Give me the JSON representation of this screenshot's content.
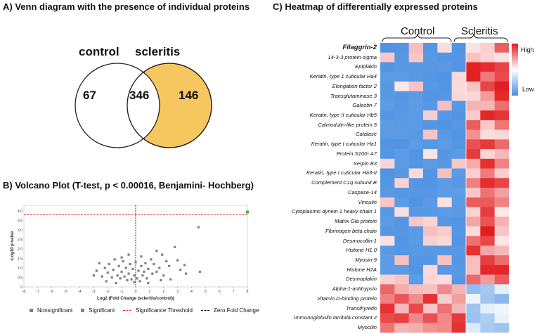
{
  "panel_a": {
    "title": "A) Venn diagram with the presence of individual proteins",
    "label_left": "control",
    "label_right": "scleritis",
    "count_left": "67",
    "count_overlap": "346",
    "count_right": "146",
    "fill_right": "#f7c75f"
  },
  "panel_b": {
    "title": "B) Volcano Plot (T-test, p < 0.00016, Benjamini- Hochberg)",
    "legend": {
      "nonsig": "Nonsignificant",
      "sig": "Significant",
      "threshold": "Significance Threshold",
      "zero": "Zero Fold Change"
    },
    "colors": {
      "nonsig": "#808080",
      "sig": "#3cb44b",
      "threshold": "#e53935",
      "zero": "#000000"
    }
  },
  "panel_c": {
    "title": "C) Heatmap of differentially expressed proteins",
    "group_control": "Control",
    "group_scleritis": "Scleritis",
    "scale_high": "High",
    "scale_low": "Low",
    "proteins": [
      "Filaggrin-2",
      "14-3-3 protein sigma",
      "Epiplakin",
      "Keratin, type 1 cuticular Ha4",
      "Elongation factor 2",
      "Transglutaminase 3",
      "Galectin-7",
      "Keratin, type II cuticular Hb5",
      "Calmodulin-like protein 5",
      "Catalase",
      "Keratin, type I cuticular Ha1",
      "Protein S100- A7",
      "Serpin B3",
      "Keratin, type I cuticular Ha3-II",
      "Complement C1q subunit B",
      "Caspase-14",
      "Vinculin",
      "Cytoplasmic dynein 1 heavy chain 1",
      "Matrix Gla protein",
      "Fibrinogen beta chain",
      "Desmocollin-1",
      "Histone H1.0",
      "Myosin-9",
      "Histone H2A",
      "Desmoplakin",
      "Alpha-1-antitrypsin",
      "Vitamin D-binding protein",
      "Transthyretin",
      "Immunoglobulin lambda constant 2",
      "Myocilin"
    ]
  },
  "chart_data": {
    "type": "scatter",
    "title": "Volcano Plot (T-test, p < 0.00016, Benjamini- Hochberg)",
    "xlabel": "Log2 (Fold Change (scleritis/control))",
    "ylabel": "-Log10 p-value",
    "xlim": [
      -8,
      8
    ],
    "ylim": [
      0,
      4.3
    ],
    "x_ticks": [
      "-8",
      "-7",
      "-6",
      "-5",
      "-4",
      "-3",
      "-2",
      "-1",
      "0",
      "1",
      "2",
      "3",
      "4",
      "5",
      "6",
      "7",
      "8"
    ],
    "y_ticks": [
      "0",
      "0.5",
      "1.0",
      "1.5",
      "2.0",
      "2.5",
      "3.0",
      "3.5",
      "4.0"
    ],
    "significance_threshold": 3.8,
    "zero_fold_change": 0,
    "significant_points": [
      [
        8.0,
        3.95
      ]
    ],
    "nonsignificant_points": [
      [
        4.5,
        3.15
      ],
      [
        4.6,
        0.8
      ],
      [
        3.5,
        1.15
      ],
      [
        3.2,
        0.9
      ],
      [
        3.6,
        0.7
      ],
      [
        2.8,
        2.1
      ],
      [
        2.2,
        1.35
      ],
      [
        2.4,
        1.1
      ],
      [
        1.9,
        1.7
      ],
      [
        1.7,
        1.0
      ],
      [
        2.0,
        0.6
      ],
      [
        1.3,
        1.2
      ],
      [
        1.5,
        0.8
      ],
      [
        1.1,
        1.45
      ],
      [
        0.9,
        0.95
      ],
      [
        1.2,
        0.7
      ],
      [
        0.7,
        1.25
      ],
      [
        0.6,
        0.8
      ],
      [
        0.8,
        0.45
      ],
      [
        0.4,
        1.1
      ],
      [
        0.5,
        0.6
      ],
      [
        0.3,
        0.3
      ],
      [
        0.2,
        0.85
      ],
      [
        0.1,
        0.45
      ],
      [
        -0.1,
        0.6
      ],
      [
        -0.2,
        0.95
      ],
      [
        -0.3,
        0.4
      ],
      [
        -0.4,
        1.2
      ],
      [
        -0.5,
        0.7
      ],
      [
        -0.6,
        0.35
      ],
      [
        -0.7,
        1.0
      ],
      [
        -0.8,
        0.55
      ],
      [
        -0.9,
        1.35
      ],
      [
        -1.0,
        0.8
      ],
      [
        -1.1,
        0.45
      ],
      [
        -1.2,
        1.1
      ],
      [
        -1.3,
        0.6
      ],
      [
        -1.5,
        1.45
      ],
      [
        -1.6,
        0.9
      ],
      [
        -1.7,
        0.5
      ],
      [
        -1.9,
        1.2
      ],
      [
        -2.0,
        0.75
      ],
      [
        -2.2,
        1.0
      ],
      [
        -2.4,
        0.55
      ],
      [
        -2.6,
        1.25
      ],
      [
        -2.8,
        0.85
      ],
      [
        -3.0,
        0.6
      ],
      [
        -0.5,
        1.7
      ],
      [
        0.4,
        1.6
      ],
      [
        -1.0,
        1.55
      ],
      [
        1.5,
        1.9
      ],
      [
        2.5,
        0.4
      ],
      [
        -2.1,
        0.3
      ],
      [
        0.9,
        0.2
      ],
      [
        -1.4,
        0.2
      ],
      [
        0.0,
        1.3
      ],
      [
        -0.1,
        0.25
      ],
      [
        1.8,
        0.35
      ],
      [
        3.0,
        1.4
      ]
    ]
  }
}
